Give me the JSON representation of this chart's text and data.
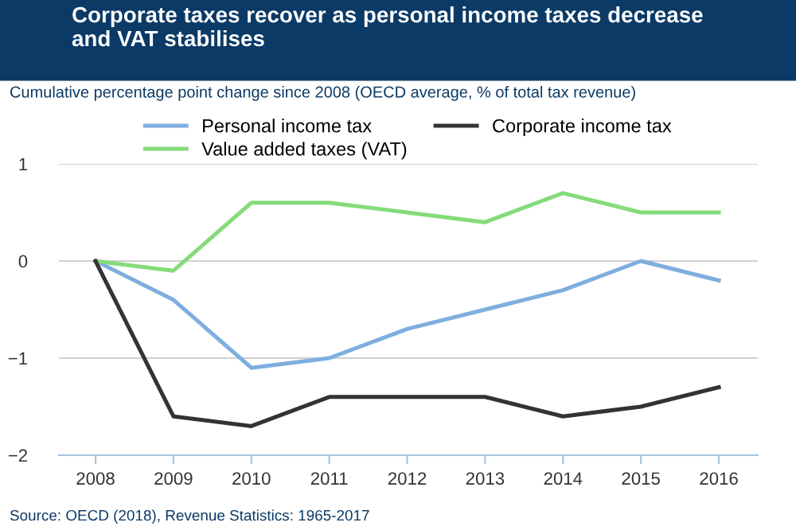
{
  "chart_data": {
    "type": "line",
    "title": "Corporate taxes recover as personal income taxes decrease\nand VAT stabilises",
    "subtitle": "Cumulative percentage point change since 2008 (OECD average, % of total tax revenue)",
    "categories": [
      "2008",
      "2009",
      "2010",
      "2011",
      "2012",
      "2013",
      "2014",
      "2015",
      "2016"
    ],
    "series": [
      {
        "name": "Personal income tax",
        "color": "#7eaee0",
        "values": [
          0,
          -0.4,
          -1.1,
          -1.0,
          -0.7,
          -0.5,
          -0.3,
          0.0,
          -0.2
        ]
      },
      {
        "name": "Value added taxes (VAT)",
        "color": "#85db7a",
        "values": [
          0,
          -0.1,
          0.6,
          0.6,
          0.5,
          0.4,
          0.7,
          0.5,
          0.5
        ]
      },
      {
        "name": "Corporate income tax",
        "color": "#333333",
        "values": [
          0,
          -1.6,
          -1.7,
          -1.4,
          -1.4,
          -1.4,
          -1.6,
          -1.5,
          -1.3
        ]
      }
    ],
    "ylim": [
      -2,
      1
    ],
    "yticks": [
      {
        "value": -2,
        "label": "−2"
      },
      {
        "value": -1,
        "label": "−1"
      },
      0,
      1
    ],
    "grid": "y",
    "legend": "top",
    "marker": "none",
    "line_style": "solid",
    "annotations": [
      "Source: OECD (2018), Revenue Statistics: 1965-2017"
    ]
  }
}
